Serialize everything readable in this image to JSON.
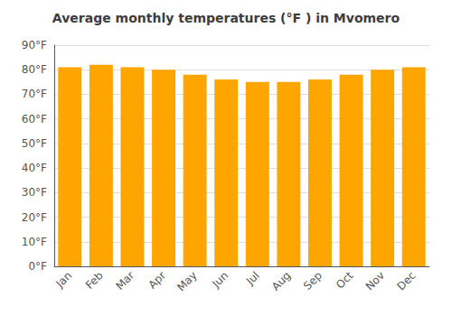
{
  "chart_data": {
    "type": "bar",
    "title": "Average monthly temperatures (°F ) in Mvomero",
    "categories": [
      "Jan",
      "Feb",
      "Mar",
      "Apr",
      "May",
      "Jun",
      "Jul",
      "Aug",
      "Sep",
      "Oct",
      "Nov",
      "Dec"
    ],
    "values": [
      81,
      82,
      81,
      80,
      78,
      76,
      75,
      75,
      76,
      78,
      80,
      81
    ],
    "color": "#FFA500",
    "ylim": [
      0,
      90
    ],
    "yticks": [
      {
        "value": 0,
        "label": "0°F"
      },
      {
        "value": 10,
        "label": "10°F"
      },
      {
        "value": 20,
        "label": "20°F"
      },
      {
        "value": 30,
        "label": "30°F"
      },
      {
        "value": 40,
        "label": "40°F"
      },
      {
        "value": 50,
        "label": "50°F"
      },
      {
        "value": 60,
        "label": "60°F"
      },
      {
        "value": 70,
        "label": "70°F"
      },
      {
        "value": 80,
        "label": "80°F"
      },
      {
        "value": 90,
        "label": "90°F"
      }
    ],
    "grid": true
  }
}
